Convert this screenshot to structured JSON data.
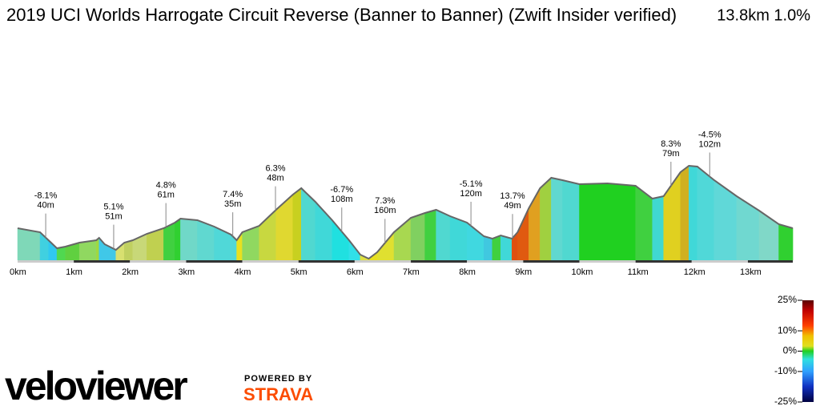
{
  "chart_data": {
    "type": "elevation-profile",
    "title": "2019 UCI Worlds Harrogate Circuit Reverse (Banner to Banner) (Zwift Insider verified)",
    "subtitle": "13.8km 1.0%",
    "x": [
      0,
      0.4,
      0.55,
      0.7,
      0.85,
      1.1,
      1.4,
      1.45,
      1.55,
      1.75,
      1.9,
      2.05,
      2.3,
      2.6,
      2.8,
      2.9,
      3.2,
      3.5,
      3.8,
      3.9,
      4.0,
      4.3,
      4.6,
      4.9,
      5.05,
      5.3,
      5.6,
      5.9,
      6.1,
      6.25,
      6.4,
      6.7,
      7.0,
      7.25,
      7.45,
      7.7,
      8.0,
      8.3,
      8.45,
      8.6,
      8.8,
      8.9,
      9.1,
      9.3,
      9.5,
      9.7,
      10.0,
      10.5,
      11.0,
      11.3,
      11.5,
      11.8,
      11.95,
      12.1,
      12.4,
      12.8,
      13.2,
      13.55,
      13.8
    ],
    "values": [
      40,
      35,
      25,
      15,
      17,
      22,
      25,
      28,
      20,
      13,
      22,
      25,
      33,
      40,
      47,
      52,
      50,
      42,
      32,
      25,
      35,
      43,
      63,
      82,
      90,
      73,
      50,
      25,
      7,
      2,
      10,
      35,
      53,
      59,
      63,
      55,
      47,
      30,
      27,
      31,
      27,
      35,
      65,
      90,
      103,
      100,
      95,
      96,
      93,
      77,
      80,
      110,
      118,
      117,
      100,
      80,
      62,
      45,
      40
    ],
    "segment_colors": [
      "#7fd8b8",
      "#40d0e0",
      "#30c8f0",
      "#50d850",
      "#60d040",
      "#90d860",
      "#a0d840",
      "#40c8e8",
      "#40c8e8",
      "#d8e070",
      "#c0d060",
      "#c8d878",
      "#c0d050",
      "#40d040",
      "#30d030",
      "#70d8c8",
      "#60d8d0",
      "#50d8d8",
      "#50d8d8",
      "#e8e020",
      "#90d860",
      "#c8d840",
      "#e0d830",
      "#c8d020",
      "#50d8d0",
      "#40d8d8",
      "#20e0e0",
      "#30e0e8",
      "#e0e040",
      "#e8e020",
      "#e0e030",
      "#a8d850",
      "#80d060",
      "#40d040",
      "#50d8d0",
      "#40d8d8",
      "#40d8e0",
      "#40c8e0",
      "#40d040",
      "#40d8d8",
      "#e05010",
      "#e05a10",
      "#e0a020",
      "#a0d040",
      "#60d8d0",
      "#50d8d0",
      "#20d020",
      "#20d020",
      "#40d040",
      "#40d8d0",
      "#e0d020",
      "#d0b020",
      "#40d8d8",
      "#50d8d8",
      "#60d8d8",
      "#70d8d0",
      "#80d8c8",
      "#30d030"
    ],
    "xlim": [
      0,
      13.8
    ],
    "ylim": [
      0,
      130
    ],
    "xticks": [
      {
        "value": 0,
        "label": "0km"
      },
      {
        "value": 1,
        "label": "1km"
      },
      {
        "value": 2,
        "label": "2km"
      },
      {
        "value": 3,
        "label": "3km"
      },
      {
        "value": 4,
        "label": "4km"
      },
      {
        "value": 5,
        "label": "5km"
      },
      {
        "value": 6,
        "label": "6km"
      },
      {
        "value": 7,
        "label": "7km"
      },
      {
        "value": 8,
        "label": "8km"
      },
      {
        "value": 9,
        "label": "9km"
      },
      {
        "value": 10,
        "label": "10km"
      },
      {
        "value": 11,
        "label": "11km"
      },
      {
        "value": 12,
        "label": "12km"
      },
      {
        "value": 13,
        "label": "13km"
      }
    ],
    "annotations": [
      {
        "x": 0.5,
        "grade": "-8.1%",
        "length": "40m"
      },
      {
        "x": 1.71,
        "grade": "5.1%",
        "length": "51m"
      },
      {
        "x": 2.64,
        "grade": "4.8%",
        "length": "61m"
      },
      {
        "x": 3.83,
        "grade": "7.4%",
        "length": "35m"
      },
      {
        "x": 4.59,
        "grade": "6.3%",
        "length": "48m"
      },
      {
        "x": 5.77,
        "grade": "-6.7%",
        "length": "108m"
      },
      {
        "x": 6.54,
        "grade": "7.3%",
        "length": "160m"
      },
      {
        "x": 8.07,
        "grade": "-5.1%",
        "length": "120m"
      },
      {
        "x": 8.81,
        "grade": "13.7%",
        "length": "49m"
      },
      {
        "x": 11.63,
        "grade": "8.3%",
        "length": "79m"
      },
      {
        "x": 12.32,
        "grade": "-4.5%",
        "length": "102m"
      }
    ],
    "gradient_legend": {
      "lim": [
        -25,
        25
      ],
      "ticks": [
        {
          "value": 25,
          "label": "25%"
        },
        {
          "value": 10,
          "label": "10%"
        },
        {
          "value": 0,
          "label": "0%"
        },
        {
          "value": -10,
          "label": "-10%"
        },
        {
          "value": -25,
          "label": "-25%"
        }
      ]
    }
  },
  "branding": {
    "logo": "veloviewer",
    "powered_by": "POWERED BY",
    "partner": "STRAVA"
  }
}
